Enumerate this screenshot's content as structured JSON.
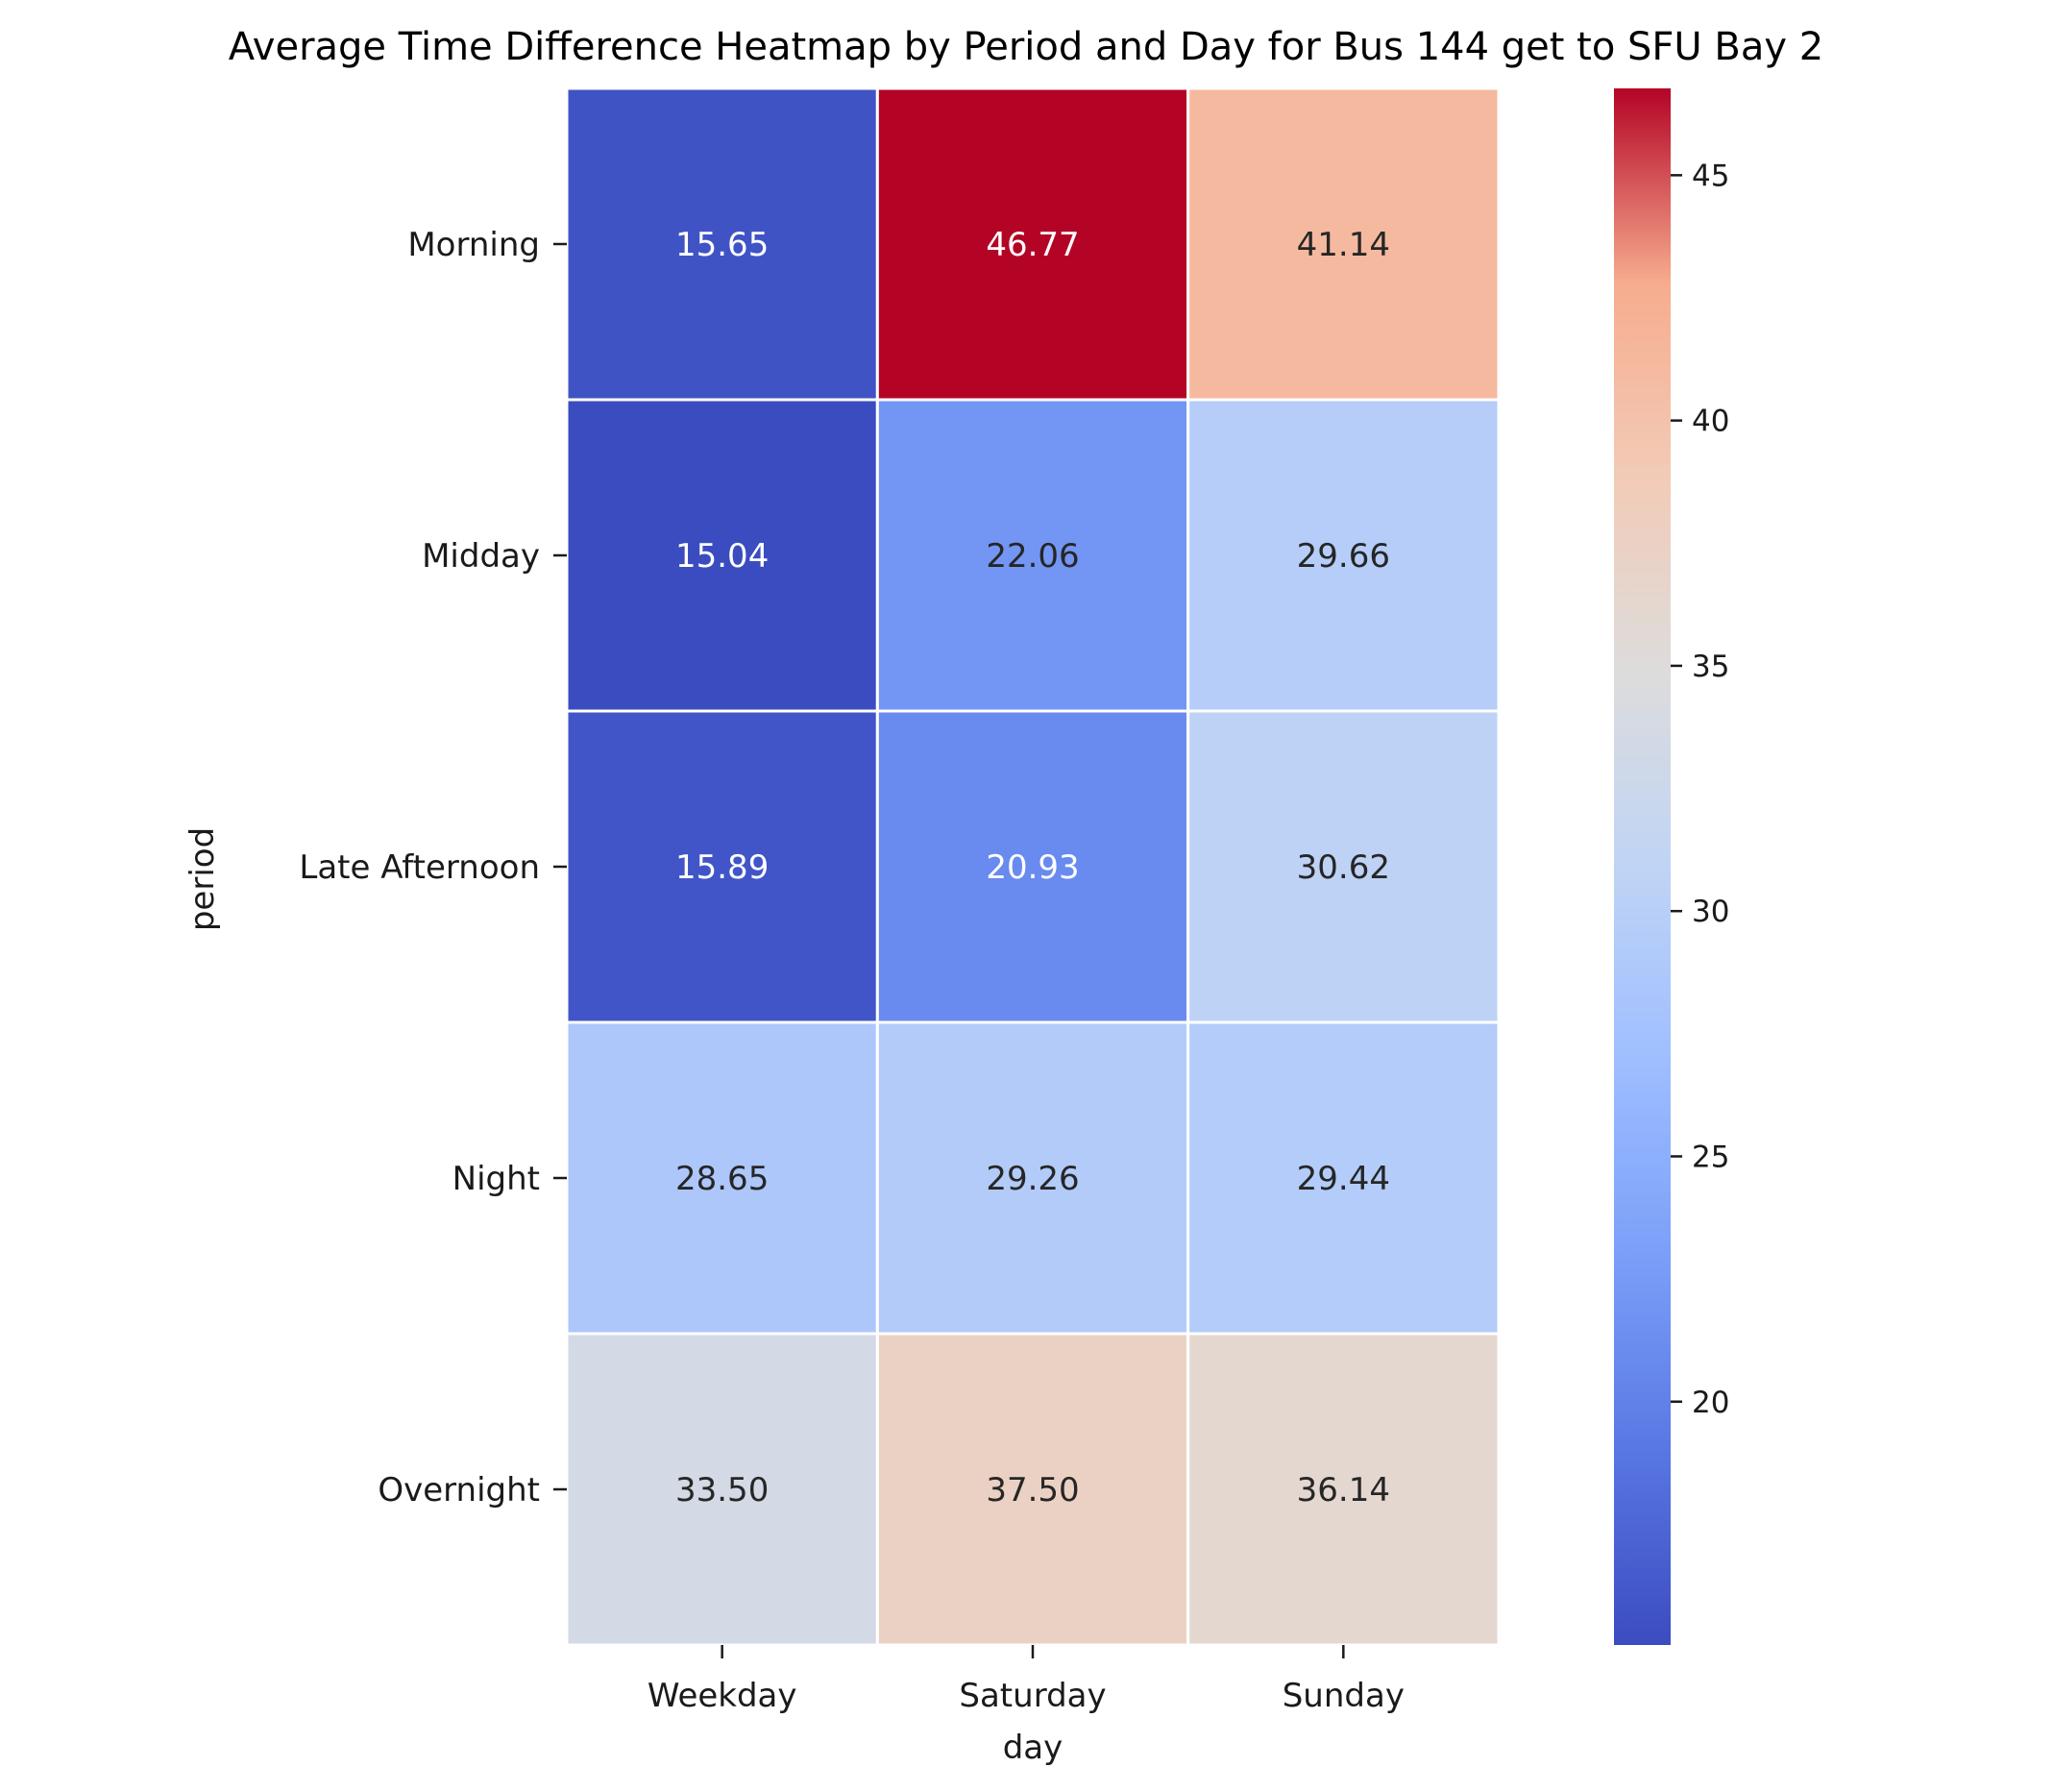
{
  "chart_data": {
    "type": "heatmap",
    "title": "Average Time Difference Heatmap by Period and Day for Bus 144 get to SFU Bay 2",
    "xlabel": "day",
    "ylabel": "period",
    "x_categories": [
      "Weekday",
      "Saturday",
      "Sunday"
    ],
    "y_categories": [
      "Morning",
      "Midday",
      "Late Afternoon",
      "Night",
      "Overnight"
    ],
    "values": [
      [
        15.65,
        46.77,
        41.14
      ],
      [
        15.04,
        22.06,
        29.66
      ],
      [
        15.89,
        20.93,
        30.62
      ],
      [
        28.65,
        29.26,
        29.44
      ],
      [
        33.5,
        37.5,
        36.14
      ]
    ],
    "value_labels": [
      [
        "15.65",
        "46.77",
        "41.14"
      ],
      [
        "15.04",
        "22.06",
        "29.66"
      ],
      [
        "15.89",
        "20.93",
        "30.62"
      ],
      [
        "28.65",
        "29.26",
        "29.44"
      ],
      [
        "33.50",
        "37.50",
        "36.14"
      ]
    ],
    "colormap": "coolwarm",
    "vmin": 15.04,
    "vmax": 46.77,
    "colorbar_ticks": [
      20,
      25,
      30,
      35,
      40,
      45
    ],
    "colorbar_tick_labels": [
      "20",
      "25",
      "30",
      "35",
      "40",
      "45"
    ]
  }
}
